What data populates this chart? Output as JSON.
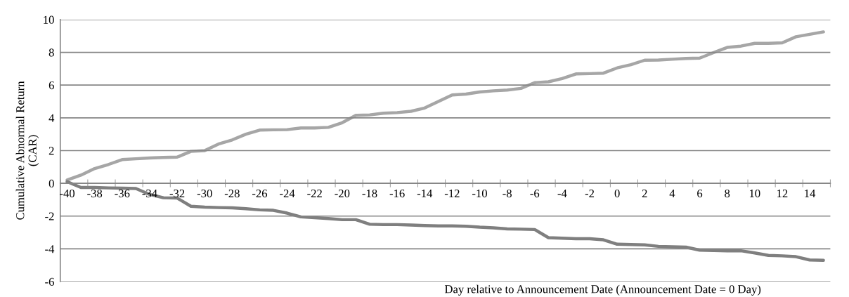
{
  "chart_data": {
    "type": "line",
    "ylabel": "Cumulative Abnormal Return\n(CAR)",
    "xlabel": "Day relative to Announcement Date (Announcement Date = 0 Day)",
    "categories": [
      "-40",
      null,
      "-38",
      null,
      "-36",
      null,
      "-34",
      null,
      "-32",
      null,
      "-30",
      null,
      "-28",
      null,
      "-26",
      null,
      "-24",
      null,
      "-22",
      null,
      "-20",
      null,
      "-18",
      null,
      "-16",
      null,
      "-14",
      null,
      "-12",
      null,
      "-10",
      null,
      "-8",
      null,
      "-6",
      null,
      "-4",
      null,
      "-2",
      null,
      "0",
      null,
      "2",
      null,
      "4",
      null,
      "6",
      null,
      "8",
      null,
      "10",
      null,
      "12",
      null,
      "14",
      null
    ],
    "series": [
      {
        "color": "#a6a6a6",
        "values": [
          0.2,
          0.5,
          0.9,
          1.15,
          1.45,
          1.5,
          1.55,
          1.58,
          1.6,
          1.95,
          2.0,
          2.4,
          2.65,
          3.0,
          3.25,
          3.27,
          3.28,
          3.38,
          3.38,
          3.42,
          3.7,
          4.15,
          4.18,
          4.28,
          4.32,
          4.4,
          4.6,
          5.0,
          5.4,
          5.45,
          5.58,
          5.65,
          5.7,
          5.8,
          6.15,
          6.2,
          6.4,
          6.68,
          6.7,
          6.73,
          7.05,
          7.25,
          7.52,
          7.53,
          7.58,
          7.63,
          7.65,
          7.98,
          8.3,
          8.38,
          8.55,
          8.55,
          8.58,
          8.95,
          9.1,
          9.25
        ]
      },
      {
        "color": "#7f7f7f",
        "values": [
          0.1,
          -0.25,
          -0.25,
          -0.28,
          -0.3,
          -0.32,
          -0.68,
          -0.88,
          -0.9,
          -1.4,
          -1.45,
          -1.48,
          -1.5,
          -1.55,
          -1.62,
          -1.65,
          -1.82,
          -2.05,
          -2.1,
          -2.15,
          -2.22,
          -2.22,
          -2.5,
          -2.52,
          -2.52,
          -2.55,
          -2.58,
          -2.6,
          -2.6,
          -2.62,
          -2.68,
          -2.72,
          -2.78,
          -2.8,
          -2.82,
          -3.32,
          -3.35,
          -3.38,
          -3.38,
          -3.45,
          -3.72,
          -3.74,
          -3.76,
          -3.85,
          -3.88,
          -3.9,
          -4.08,
          -4.1,
          -4.12,
          -4.12,
          -4.25,
          -4.4,
          -4.43,
          -4.48,
          -4.68,
          -4.7
        ]
      }
    ],
    "ylim": [
      -6,
      10
    ],
    "yticks": [
      -6,
      -4,
      -2,
      0,
      2,
      4,
      6,
      8,
      10
    ],
    "grid": "y",
    "marker": "none",
    "line_style": "solid"
  }
}
